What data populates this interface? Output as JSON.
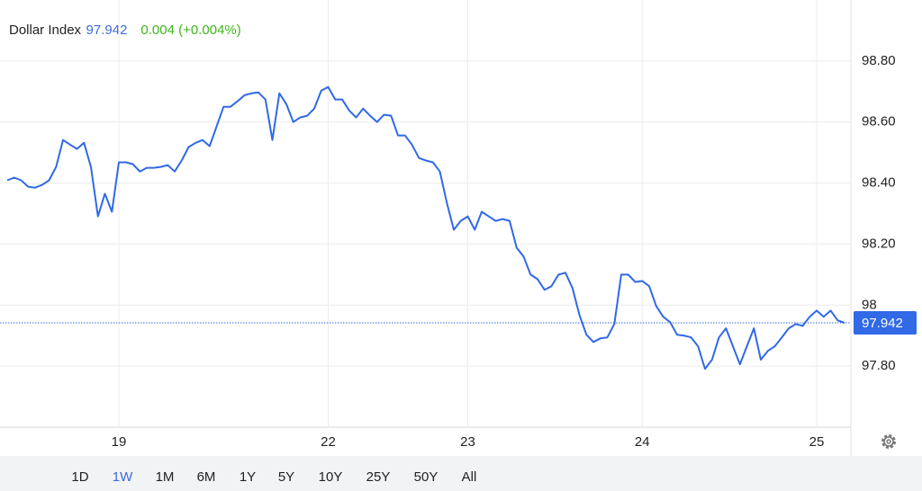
{
  "header": {
    "title": "Dollar Index",
    "price": 97.942,
    "change": "0.004 (+0.004%)"
  },
  "chart_data": {
    "type": "line",
    "categories": [
      null,
      null,
      null,
      null,
      null,
      null,
      null,
      null,
      null,
      null,
      null,
      null,
      null,
      null,
      null,
      null,
      "19",
      null,
      null,
      null,
      null,
      null,
      null,
      null,
      null,
      null,
      null,
      null,
      null,
      null,
      null,
      null,
      null,
      null,
      null,
      null,
      null,
      null,
      null,
      null,
      null,
      null,
      null,
      null,
      null,
      null,
      "22",
      null,
      null,
      null,
      null,
      null,
      null,
      null,
      null,
      null,
      null,
      null,
      null,
      null,
      null,
      null,
      null,
      null,
      null,
      null,
      "23",
      null,
      null,
      null,
      null,
      null,
      null,
      null,
      null,
      null,
      null,
      null,
      null,
      null,
      null,
      null,
      null,
      null,
      null,
      null,
      null,
      null,
      null,
      null,
      null,
      "24",
      null,
      null,
      null,
      null,
      null,
      null,
      null,
      null,
      null,
      null,
      null,
      null,
      null,
      null,
      null,
      null,
      null,
      null,
      null,
      null,
      null,
      null,
      null,
      null,
      "25",
      null,
      null,
      null,
      null
    ],
    "series": [
      {
        "name": "Dollar Index",
        "color": "#3169e6",
        "values": [
          98.409,
          98.418,
          98.409,
          98.388,
          98.385,
          98.394,
          98.409,
          98.453,
          98.541,
          98.526,
          98.512,
          98.532,
          98.453,
          98.291,
          98.365,
          98.306,
          98.468,
          98.468,
          98.462,
          98.438,
          98.45,
          98.45,
          98.453,
          98.459,
          98.438,
          98.474,
          98.518,
          98.532,
          98.541,
          98.521,
          98.585,
          98.65,
          98.65,
          98.668,
          98.688,
          98.694,
          98.697,
          98.674,
          98.541,
          98.694,
          98.659,
          98.6,
          98.615,
          98.621,
          98.644,
          98.703,
          98.715,
          98.674,
          98.674,
          98.638,
          98.615,
          98.644,
          98.621,
          98.6,
          98.624,
          98.621,
          98.556,
          98.556,
          98.526,
          98.482,
          98.474,
          98.468,
          98.438,
          98.335,
          98.247,
          98.276,
          98.291,
          98.247,
          98.306,
          98.291,
          98.276,
          98.282,
          98.276,
          98.188,
          98.159,
          98.1,
          98.085,
          98.05,
          98.062,
          98.1,
          98.106,
          98.056,
          97.968,
          97.903,
          97.879,
          97.891,
          97.894,
          97.938,
          98.1,
          98.1,
          98.076,
          98.079,
          98.062,
          97.997,
          97.962,
          97.944,
          97.903,
          97.9,
          97.894,
          97.865,
          97.791,
          97.821,
          97.894,
          97.924,
          97.865,
          97.806,
          97.865,
          97.924,
          97.821,
          97.85,
          97.865,
          97.894,
          97.924,
          97.938,
          97.932,
          97.962,
          97.982,
          97.962,
          97.982,
          97.95,
          97.942
        ]
      }
    ],
    "ylim": [
      97.6,
      99.0
    ],
    "yticks": [
      {
        "value": 97.8,
        "label": "97.80"
      },
      98,
      {
        "value": 98.2,
        "label": "98.20"
      },
      {
        "value": 98.4,
        "label": "98.40"
      },
      {
        "value": 98.6,
        "label": "98.60"
      },
      {
        "value": 98.8,
        "label": "98.80"
      }
    ],
    "grid": true
  },
  "ranges": [
    "1D",
    "1W",
    "1M",
    "6M",
    "1Y",
    "5Y",
    "10Y",
    "25Y",
    "50Y",
    "All"
  ],
  "selected_range": "1W"
}
